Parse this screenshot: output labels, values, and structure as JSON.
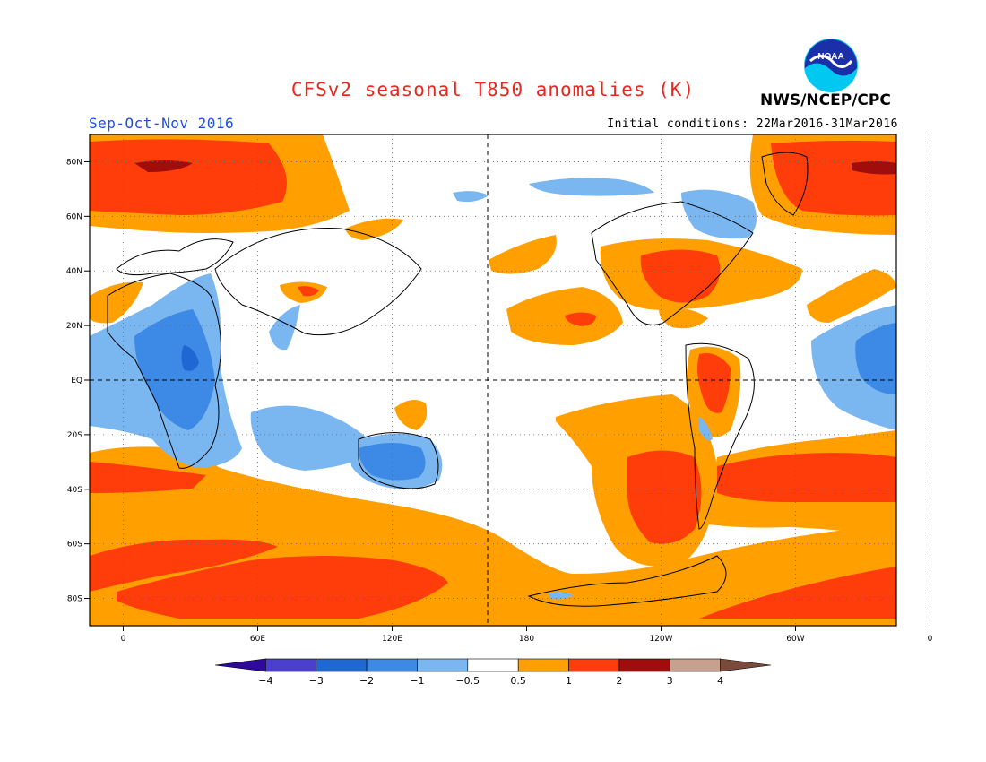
{
  "header": {
    "title": "CFSv2 seasonal T850 anomalies (K)",
    "season": "Sep-Oct-Nov 2016",
    "initial_conditions": "Initial conditions: 22Mar2016-31Mar2016",
    "agency": "NWS/NCEP/CPC",
    "logo_text": "NOAA"
  },
  "map": {
    "lat_labels": [
      "80N",
      "60N",
      "40N",
      "20N",
      "EQ",
      "20S",
      "40S",
      "60S",
      "80S"
    ],
    "lon_labels": [
      "0",
      "60E",
      "120E",
      "180",
      "120W",
      "60W",
      "0"
    ],
    "projection": "equirectangular, dateline-centered, 0 at left and right",
    "grid": "dotted",
    "reference_lines": "dashed equator and dateline"
  },
  "colorbar": {
    "tick_labels": [
      "-4",
      "-3",
      "-2",
      "-1",
      "-0.5",
      "0.5",
      "1",
      "2",
      "3",
      "4"
    ],
    "colors": [
      "#2e0a9c",
      "#4b3fcf",
      "#1f68d4",
      "#3c8ae6",
      "#7ab6f0",
      "#ffffff",
      "#ffa000",
      "#ff3d0a",
      "#a10d0d",
      "#c8a090",
      "#7a4a3a"
    ]
  },
  "chart_data": {
    "type": "heatmap",
    "title": "CFSv2 seasonal T850 anomalies (K)",
    "variable": "850 hPa temperature anomaly",
    "units": "K",
    "levels": [
      -4,
      -3,
      -2,
      -1,
      -0.5,
      0.5,
      1,
      2,
      3,
      4
    ],
    "regions": [
      {
        "area": "Arctic near Greenland / Eastern Europe (North Atlantic sector)",
        "anomaly_range": "1 to 3"
      },
      {
        "area": "Southern Ocean band around 60S to 80S",
        "anomaly_range": "0.5 to 2"
      },
      {
        "area": "Central and eastern United States",
        "anomaly_range": "1 to 2"
      },
      {
        "area": "Subtropical North Pacific (Hawaii region)",
        "anomaly_range": "0.5 to 2"
      },
      {
        "area": "Southeast Pacific and South America",
        "anomaly_range": "0.5 to 2"
      },
      {
        "area": "Central and East Africa / western Indian Ocean",
        "anomaly_range": "-2 to -0.5"
      },
      {
        "area": "Australia",
        "anomaly_range": "-1 to -0.5"
      },
      {
        "area": "Eastern tropical Atlantic",
        "anomaly_range": "-1 to -0.5"
      },
      {
        "area": "Eastern Canada / Arctic archipelago",
        "anomaly_range": "-1 to -0.5"
      }
    ]
  }
}
